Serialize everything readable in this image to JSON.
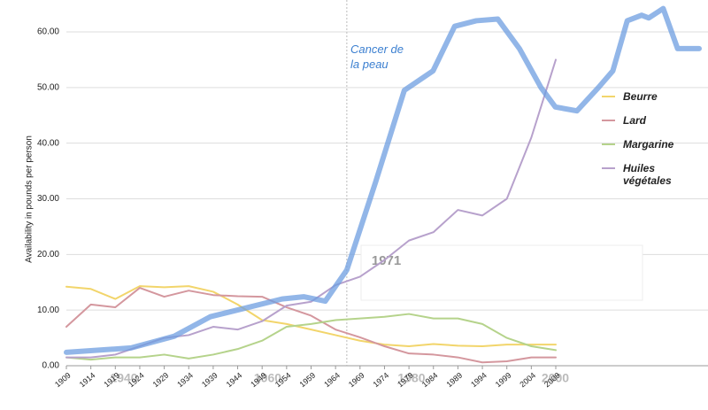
{
  "chart_data": {
    "type": "line",
    "y_label": "Availability in pounds per person",
    "x": [
      1909,
      1914,
      1919,
      1924,
      1929,
      1934,
      1939,
      1944,
      1949,
      1954,
      1959,
      1964,
      1969,
      1974,
      1979,
      1984,
      1989,
      1994,
      1999,
      2004,
      2009
    ],
    "xlim": [
      1909,
      2009
    ],
    "xticks": [
      1909,
      1914,
      1919,
      1924,
      1929,
      1934,
      1939,
      1944,
      1949,
      1954,
      1959,
      1964,
      1969,
      1974,
      1979,
      1984,
      1989,
      1994,
      1999,
      2004,
      2009
    ],
    "ylim": [
      0,
      60
    ],
    "yticks": [
      {
        "value": 0,
        "label": "0.00"
      },
      {
        "value": 10,
        "label": "10.00"
      },
      {
        "value": 20,
        "label": "20.00"
      },
      {
        "value": 30,
        "label": "30.00"
      },
      {
        "value": 40,
        "label": "40.00"
      },
      {
        "value": 50,
        "label": "50.00"
      },
      {
        "value": 60,
        "label": "60.00"
      }
    ],
    "grid": true,
    "legend": "right",
    "series": [
      {
        "name": "Beurre",
        "color": "#f2d56b",
        "values": [
          14.2,
          13.8,
          12,
          14.3,
          14.1,
          14.3,
          13.3,
          11,
          8.2,
          7.5,
          6.5,
          5.5,
          4.5,
          3.8,
          3.5,
          3.9,
          3.6,
          3.5,
          3.8,
          3.8,
          3.8
        ]
      },
      {
        "name": "Lard",
        "color": "#d4979e",
        "values": [
          7,
          11,
          10.5,
          14,
          12.4,
          13.5,
          12.7,
          12.5,
          12.4,
          10.5,
          9,
          6.5,
          5.1,
          3.5,
          2.2,
          2,
          1.5,
          0.6,
          0.8,
          1.5,
          1.5
        ]
      },
      {
        "name": "Margarine",
        "color": "#b5d38b",
        "values": [
          1.5,
          1.1,
          1.5,
          1.5,
          2,
          1.3,
          2,
          3,
          4.5,
          7,
          7.5,
          8.2,
          8.5,
          8.8,
          9.3,
          8.5,
          8.5,
          7.5,
          5,
          3.5,
          2.8
        ]
      },
      {
        "name": "Huiles végétales",
        "color": "#b7a1cc",
        "values": [
          1.5,
          1.5,
          2,
          3.5,
          5,
          5.5,
          7,
          6.5,
          8,
          10.8,
          11.5,
          14.5,
          16,
          19,
          22.5,
          24,
          28,
          27,
          30,
          41,
          55
        ]
      }
    ],
    "overlay": {
      "name": "Cancer de la peau",
      "color": "#6d9de0",
      "xlim": [
        1932,
        2020
      ],
      "xticks": [
        1940,
        1960,
        1980,
        2000
      ],
      "marker": 1971,
      "x": [
        1932,
        1941,
        1947,
        1952,
        1957,
        1962,
        1965,
        1968,
        1971,
        1975,
        1979,
        1983,
        1986,
        1989,
        1992,
        1995,
        1998,
        2000,
        2003,
        2006,
        2008,
        2010,
        2012,
        2013,
        2015,
        2017,
        2020
      ],
      "values": [
        2.4,
        3.2,
        5.3,
        8.8,
        10.4,
        12,
        12.4,
        11.6,
        17.2,
        33,
        49.5,
        53,
        61,
        62,
        62.3,
        57,
        50,
        46.5,
        45.8,
        50,
        53,
        62,
        63,
        62.5,
        64.2,
        57,
        57
      ]
    }
  }
}
